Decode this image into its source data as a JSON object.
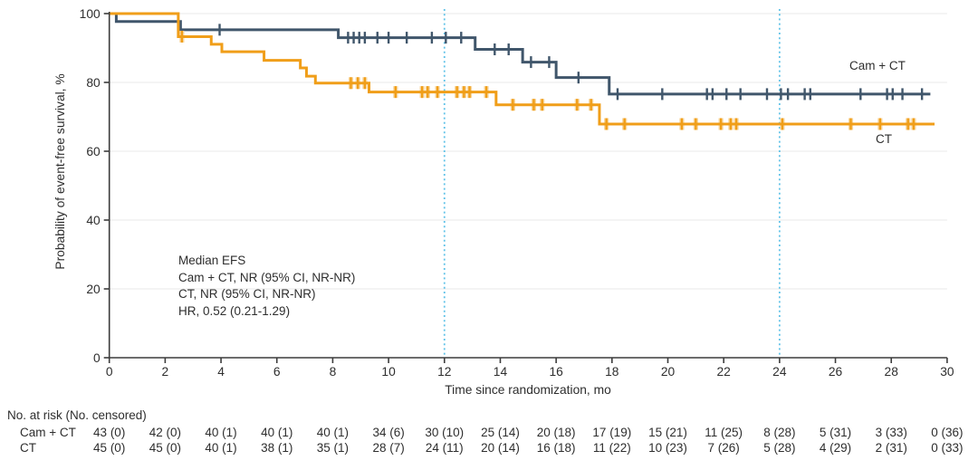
{
  "figure": {
    "y_title": "Probability of event-free survival, %",
    "x_title": "Time since randomization, mo"
  },
  "annotation": {
    "lines": [
      "Median EFS",
      "Cam + CT, NR (95% CI, NR-NR)",
      "CT, NR (95% CI, NR-NR)",
      "HR, 0.52 (0.21-1.29)"
    ]
  },
  "series_labels": {
    "cam_ct": "Cam + CT",
    "ct": "CT"
  },
  "colors": {
    "cam_ct": "#40566B",
    "ct": "#F09E19",
    "ct_censor_halo": "#F8D79F",
    "reference_line": "#62C3E8",
    "gridline": "#E9E9E9",
    "axis": "#3C3C3C",
    "text": "#2E2E2E"
  },
  "chart_data": {
    "type": "line",
    "subtype": "kaplan-meier-step",
    "title": "",
    "xlabel": "Time since randomization, mo",
    "ylabel": "Probability of event-free survival, %",
    "xlim": [
      0,
      30
    ],
    "ylim": [
      0,
      100
    ],
    "x_ticks": [
      0,
      2,
      4,
      6,
      8,
      10,
      12,
      14,
      16,
      18,
      20,
      22,
      24,
      26,
      28,
      30
    ],
    "y_ticks": [
      0,
      20,
      40,
      60,
      80,
      100
    ],
    "grid": "horizontal",
    "reference_lines_x": [
      12,
      24
    ],
    "series": [
      {
        "id": "cam-ct",
        "name": "Cam + CT",
        "color": "#40566B",
        "end_t": 29.4,
        "steps": [
          [
            0,
            100
          ],
          [
            0.25,
            97.7
          ],
          [
            2.55,
            95.3
          ],
          [
            8.2,
            93.0
          ],
          [
            13.1,
            89.6
          ],
          [
            14.8,
            85.9
          ],
          [
            16.0,
            81.4
          ],
          [
            17.9,
            76.6
          ]
        ],
        "censors": [
          [
            3.95,
            95.3
          ],
          [
            8.55,
            93
          ],
          [
            8.75,
            93
          ],
          [
            8.95,
            93
          ],
          [
            9.15,
            93
          ],
          [
            9.6,
            93
          ],
          [
            10.0,
            93
          ],
          [
            10.65,
            93
          ],
          [
            11.55,
            93
          ],
          [
            12.05,
            93
          ],
          [
            12.6,
            93
          ],
          [
            13.8,
            89.6
          ],
          [
            14.3,
            89.6
          ],
          [
            15.1,
            85.9
          ],
          [
            15.75,
            85.9
          ],
          [
            16.8,
            81.4
          ],
          [
            18.2,
            76.6
          ],
          [
            19.8,
            76.6
          ],
          [
            21.4,
            76.6
          ],
          [
            21.6,
            76.6
          ],
          [
            22.1,
            76.6
          ],
          [
            22.6,
            76.6
          ],
          [
            23.55,
            76.6
          ],
          [
            24.05,
            76.6
          ],
          [
            24.3,
            76.6
          ],
          [
            24.9,
            76.6
          ],
          [
            25.1,
            76.6
          ],
          [
            26.9,
            76.6
          ],
          [
            27.85,
            76.6
          ],
          [
            28.05,
            76.6
          ],
          [
            28.4,
            76.6
          ],
          [
            29.1,
            76.6
          ]
        ]
      },
      {
        "id": "ct",
        "name": "CT",
        "color": "#F09E19",
        "halo": "#F8D79F",
        "end_t": 29.55,
        "steps": [
          [
            0,
            100
          ],
          [
            2.47,
            93.3
          ],
          [
            3.65,
            91.1
          ],
          [
            4.03,
            88.9
          ],
          [
            5.54,
            86.4
          ],
          [
            6.84,
            84.2
          ],
          [
            7.06,
            81.8
          ],
          [
            7.38,
            79.8
          ],
          [
            9.3,
            77.2
          ],
          [
            13.85,
            73.5
          ],
          [
            17.55,
            67.9
          ]
        ],
        "censors": [
          [
            2.6,
            93.3
          ],
          [
            8.65,
            79.8
          ],
          [
            8.9,
            79.8
          ],
          [
            9.15,
            79.8
          ],
          [
            10.25,
            77.2
          ],
          [
            11.2,
            77.2
          ],
          [
            11.4,
            77.2
          ],
          [
            11.75,
            77.2
          ],
          [
            12.45,
            77.2
          ],
          [
            12.7,
            77.2
          ],
          [
            12.9,
            77.2
          ],
          [
            13.5,
            77.2
          ],
          [
            14.45,
            73.5
          ],
          [
            15.2,
            73.5
          ],
          [
            15.5,
            73.5
          ],
          [
            16.75,
            73.5
          ],
          [
            17.25,
            73.5
          ],
          [
            17.8,
            67.9
          ],
          [
            18.45,
            67.9
          ],
          [
            20.5,
            67.9
          ],
          [
            21.0,
            67.9
          ],
          [
            21.9,
            67.9
          ],
          [
            22.25,
            67.9
          ],
          [
            22.45,
            67.9
          ],
          [
            24.1,
            67.9
          ],
          [
            26.55,
            67.9
          ],
          [
            27.6,
            67.9
          ],
          [
            28.6,
            67.9
          ],
          [
            28.8,
            67.9
          ]
        ]
      }
    ]
  },
  "risk_table": {
    "header": "No. at risk (No. censored)",
    "times": [
      0,
      2,
      4,
      6,
      8,
      10,
      12,
      14,
      16,
      18,
      20,
      22,
      24,
      26,
      28,
      30
    ],
    "rows": [
      {
        "label": "Cam + CT",
        "values": [
          "43 (0)",
          "42 (0)",
          "40 (1)",
          "40 (1)",
          "40 (1)",
          "34 (6)",
          "30 (10)",
          "25 (14)",
          "20 (18)",
          "17 (19)",
          "15 (21)",
          "11 (25)",
          "8 (28)",
          "5 (31)",
          "3 (33)",
          "0 (36)"
        ]
      },
      {
        "label": "CT",
        "values": [
          "45 (0)",
          "45 (0)",
          "40 (1)",
          "38 (1)",
          "35 (1)",
          "28 (7)",
          "24 (11)",
          "20 (14)",
          "16 (18)",
          "11 (22)",
          "10 (23)",
          "7 (26)",
          "5 (28)",
          "4 (29)",
          "2 (31)",
          "0 (33)"
        ]
      }
    ]
  }
}
